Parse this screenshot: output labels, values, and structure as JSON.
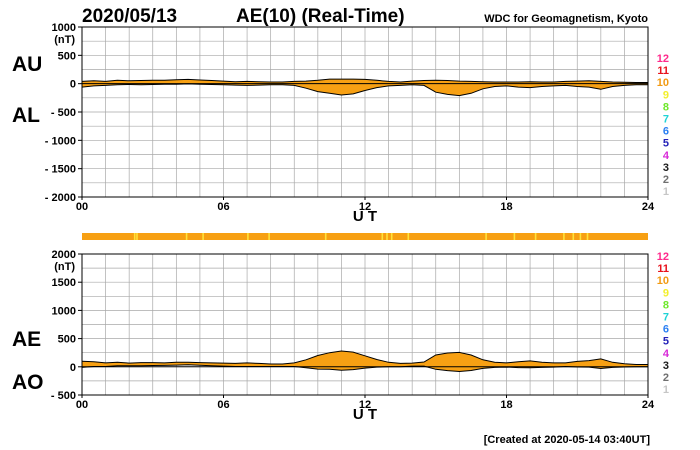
{
  "header": {
    "date": "2020/05/13",
    "title": "AE(10) (Real-Time)",
    "source": "WDC for Geomagnetism, Kyoto"
  },
  "footer": {
    "created": "[Created at 2020-05-14 03:40UT]"
  },
  "colors": {
    "fill": "#f7a013",
    "grid": "#a8a8a8",
    "axis": "#000000",
    "strip": "#f7a013",
    "strip_hi": "#ffe23a"
  },
  "legend": {
    "levels": [
      {
        "label": "12",
        "color": "#ff2a8c"
      },
      {
        "label": "11",
        "color": "#e8121c"
      },
      {
        "label": "10",
        "color": "#f29a12"
      },
      {
        "label": "9",
        "color": "#f2ef2a"
      },
      {
        "label": "8",
        "color": "#6fe82c"
      },
      {
        "label": "7",
        "color": "#1fd3d6"
      },
      {
        "label": "6",
        "color": "#2a7ff2"
      },
      {
        "label": "5",
        "color": "#2422b8"
      },
      {
        "label": "4",
        "color": "#d829d8"
      },
      {
        "label": "3",
        "color": "#1a1a1a"
      },
      {
        "label": "2",
        "color": "#6f6f6f"
      },
      {
        "label": "1",
        "color": "#c6c6c6"
      }
    ]
  },
  "station_strip": {
    "label": "station coverage bar",
    "highlight_hours": [
      2.2,
      2.3,
      4.4,
      5.1,
      7.0,
      7.9,
      10.3,
      12.7,
      12.9,
      13.1,
      13.8,
      17.1,
      18.3,
      19.2,
      20.4,
      20.8,
      21.1,
      21.4
    ]
  },
  "chart_data": [
    {
      "type": "area",
      "title": "AU / AL",
      "series_labels": {
        "upper": "AU",
        "lower": "AL"
      },
      "xlabel": "U T",
      "xlim": [
        0,
        24
      ],
      "xticks": [
        "00",
        "06",
        "12",
        "18",
        "24"
      ],
      "ylim": [
        -2000,
        1000
      ],
      "yunit": "(nT)",
      "ytick_labels": [
        "1000",
        "500",
        "0",
        "- 500",
        "- 1000",
        "- 1500",
        "- 2000"
      ],
      "x": [
        0,
        0.5,
        1,
        1.5,
        2,
        2.5,
        3,
        3.5,
        4,
        4.5,
        5,
        5.5,
        6,
        6.5,
        7,
        7.5,
        8,
        8.5,
        9,
        9.5,
        10,
        10.5,
        11,
        11.5,
        12,
        12.5,
        13,
        13.5,
        14,
        14.5,
        15,
        15.5,
        16,
        16.5,
        17,
        17.5,
        18,
        18.5,
        19,
        19.5,
        20,
        20.5,
        21,
        21.5,
        22,
        22.5,
        23,
        23.5,
        24
      ],
      "series": [
        {
          "name": "AU",
          "values": [
            40,
            50,
            40,
            60,
            50,
            55,
            60,
            60,
            70,
            75,
            65,
            55,
            45,
            35,
            40,
            35,
            30,
            30,
            40,
            45,
            60,
            80,
            80,
            80,
            75,
            60,
            40,
            30,
            45,
            55,
            60,
            55,
            45,
            40,
            35,
            30,
            30,
            30,
            35,
            30,
            30,
            40,
            45,
            50,
            40,
            30,
            25,
            20,
            20
          ]
        },
        {
          "name": "AL",
          "values": [
            -60,
            -40,
            -30,
            -20,
            -15,
            -20,
            -15,
            -10,
            -10,
            -5,
            -10,
            -15,
            -20,
            -25,
            -30,
            -25,
            -20,
            -20,
            -30,
            -80,
            -140,
            -170,
            -200,
            -180,
            -120,
            -70,
            -40,
            -30,
            -20,
            -30,
            -150,
            -190,
            -210,
            -170,
            -90,
            -50,
            -40,
            -60,
            -70,
            -50,
            -40,
            -30,
            -50,
            -60,
            -100,
            -50,
            -30,
            -20,
            -20
          ]
        }
      ]
    },
    {
      "type": "area",
      "title": "AE / AO",
      "series_labels": {
        "upper": "AE",
        "lower": "AO"
      },
      "xlabel": "U T",
      "xlim": [
        0,
        24
      ],
      "xticks": [
        "00",
        "06",
        "12",
        "18",
        "24"
      ],
      "ylim": [
        -500,
        2000
      ],
      "yunit": "(nT)",
      "ytick_labels": [
        "2000",
        "1500",
        "1000",
        "500",
        "0",
        "- 500"
      ],
      "x": [
        0,
        0.5,
        1,
        1.5,
        2,
        2.5,
        3,
        3.5,
        4,
        4.5,
        5,
        5.5,
        6,
        6.5,
        7,
        7.5,
        8,
        8.5,
        9,
        9.5,
        10,
        10.5,
        11,
        11.5,
        12,
        12.5,
        13,
        13.5,
        14,
        14.5,
        15,
        15.5,
        16,
        16.5,
        17,
        17.5,
        18,
        18.5,
        19,
        19.5,
        20,
        20.5,
        21,
        21.5,
        22,
        22.5,
        23,
        23.5,
        24
      ],
      "series": [
        {
          "name": "AE",
          "values": [
            100,
            90,
            70,
            80,
            65,
            75,
            75,
            70,
            80,
            80,
            75,
            70,
            65,
            60,
            70,
            60,
            50,
            50,
            70,
            125,
            200,
            250,
            280,
            260,
            195,
            130,
            80,
            60,
            65,
            85,
            210,
            245,
            255,
            210,
            125,
            80,
            70,
            90,
            105,
            80,
            70,
            70,
            95,
            110,
            140,
            80,
            55,
            40,
            40
          ]
        },
        {
          "name": "AO",
          "values": [
            -10,
            5,
            5,
            20,
            18,
            18,
            23,
            25,
            30,
            35,
            28,
            20,
            13,
            5,
            5,
            5,
            5,
            5,
            5,
            -18,
            -40,
            -45,
            -60,
            -50,
            -23,
            -5,
            0,
            0,
            13,
            13,
            -45,
            -68,
            -83,
            -65,
            -28,
            -10,
            -5,
            -15,
            -18,
            -10,
            -5,
            5,
            -3,
            -5,
            -30,
            -10,
            -3,
            0,
            0
          ]
        }
      ]
    }
  ]
}
